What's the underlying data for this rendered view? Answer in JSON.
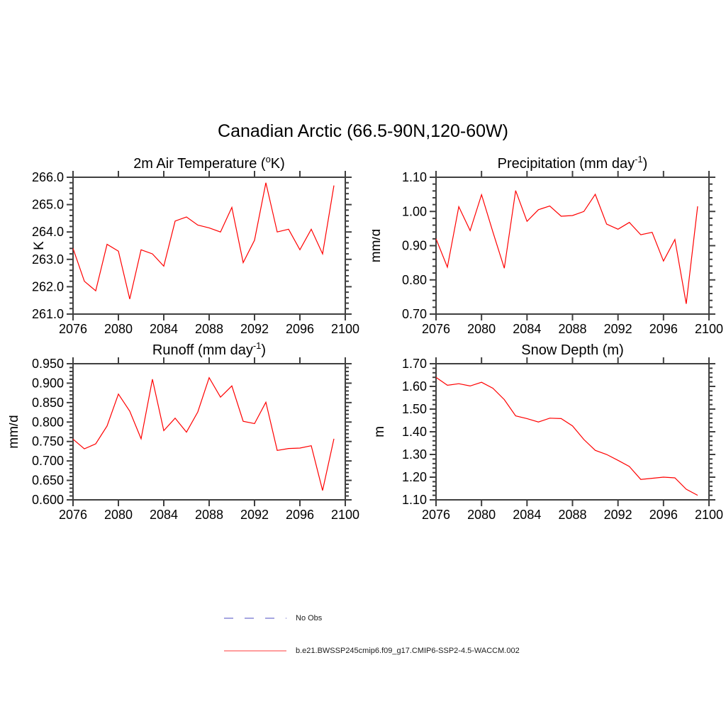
{
  "page_title": "Canadian Arctic (66.5-90N,120-60W)",
  "colors": {
    "series": "#ff0000",
    "axis": "#3f3f3f",
    "text": "#000000",
    "legend_no_obs": "#a6a6e1",
    "legend_series": "#ff9d9d"
  },
  "chart_data": [
    {
      "id": "temperature",
      "type": "line",
      "title": "2m Air Temperature (oK)",
      "title_parts": [
        {
          "t": "2m Air Temperature ("
        },
        {
          "t": "o",
          "sup": true
        },
        {
          "t": "K)"
        }
      ],
      "ylabel": "K",
      "xlim": [
        2076,
        2100
      ],
      "ylim": [
        261.0,
        266.0
      ],
      "xticks": [
        2076,
        2080,
        2084,
        2088,
        2092,
        2096,
        2100
      ],
      "ytick_labels": [
        "261.0",
        "262.0",
        "263.0",
        "264.0",
        "265.0",
        "266.0"
      ],
      "y_minor_step": 0.2,
      "x": [
        2076,
        2077,
        2078,
        2079,
        2080,
        2081,
        2082,
        2083,
        2084,
        2085,
        2086,
        2087,
        2088,
        2089,
        2090,
        2091,
        2092,
        2093,
        2094,
        2095,
        2096,
        2097,
        2098,
        2099
      ],
      "values": [
        263.4,
        262.2,
        261.85,
        263.55,
        263.3,
        261.55,
        263.35,
        263.2,
        262.75,
        264.4,
        264.55,
        264.25,
        264.15,
        264.0,
        264.9,
        262.88,
        263.7,
        265.8,
        264.0,
        264.1,
        263.35,
        264.1,
        263.2,
        265.7
      ]
    },
    {
      "id": "precipitation",
      "type": "line",
      "title": "Precipitation (mm day-1)",
      "title_parts": [
        {
          "t": "Precipitation (mm day"
        },
        {
          "t": "-1",
          "sup": true
        },
        {
          "t": ")"
        }
      ],
      "ylabel": "mm/d",
      "xlim": [
        2076,
        2100
      ],
      "ylim": [
        0.7,
        1.1
      ],
      "xticks": [
        2076,
        2080,
        2084,
        2088,
        2092,
        2096,
        2100
      ],
      "ytick_labels": [
        "0.70",
        "0.80",
        "0.90",
        "1.00",
        "1.10"
      ],
      "y_minor_step": 0.02,
      "x": [
        2076,
        2077,
        2078,
        2079,
        2080,
        2081,
        2082,
        2083,
        2084,
        2085,
        2086,
        2087,
        2088,
        2089,
        2090,
        2091,
        2092,
        2093,
        2094,
        2095,
        2096,
        2097,
        2098,
        2099
      ],
      "values": [
        0.92,
        0.837,
        1.014,
        0.944,
        1.049,
        0.94,
        0.834,
        1.061,
        0.971,
        1.005,
        1.016,
        0.986,
        0.988,
        1.0,
        1.05,
        0.963,
        0.948,
        0.968,
        0.932,
        0.939,
        0.855,
        0.918,
        0.73,
        1.015
      ]
    },
    {
      "id": "runoff",
      "type": "line",
      "title": "Runoff (mm day-1)",
      "title_parts": [
        {
          "t": "Runoff (mm day"
        },
        {
          "t": "-1",
          "sup": true
        },
        {
          "t": ")"
        }
      ],
      "ylabel": "mm/d",
      "xlim": [
        2076,
        2100
      ],
      "ylim": [
        0.6,
        0.95
      ],
      "xticks": [
        2076,
        2080,
        2084,
        2088,
        2092,
        2096,
        2100
      ],
      "ytick_labels": [
        "0.600",
        "0.650",
        "0.700",
        "0.750",
        "0.800",
        "0.850",
        "0.900",
        "0.950"
      ],
      "y_minor_step": 0.01,
      "x": [
        2076,
        2077,
        2078,
        2079,
        2080,
        2081,
        2082,
        2083,
        2084,
        2085,
        2086,
        2087,
        2088,
        2089,
        2090,
        2091,
        2092,
        2093,
        2094,
        2095,
        2096,
        2097,
        2098,
        2099
      ],
      "values": [
        0.756,
        0.731,
        0.744,
        0.79,
        0.872,
        0.828,
        0.757,
        0.91,
        0.778,
        0.81,
        0.774,
        0.826,
        0.914,
        0.864,
        0.893,
        0.802,
        0.796,
        0.851,
        0.727,
        0.732,
        0.733,
        0.739,
        0.624,
        0.757
      ]
    },
    {
      "id": "snow-depth",
      "type": "line",
      "title": "Snow Depth (m)",
      "title_parts": [
        {
          "t": "Snow Depth (m)"
        }
      ],
      "ylabel": "m",
      "xlim": [
        2076,
        2100
      ],
      "ylim": [
        1.1,
        1.7
      ],
      "xticks": [
        2076,
        2080,
        2084,
        2088,
        2092,
        2096,
        2100
      ],
      "ytick_labels": [
        "1.10",
        "1.20",
        "1.30",
        "1.40",
        "1.50",
        "1.60",
        "1.70"
      ],
      "y_minor_step": 0.02,
      "x": [
        2076,
        2077,
        2078,
        2079,
        2080,
        2081,
        2082,
        2083,
        2084,
        2085,
        2086,
        2087,
        2088,
        2089,
        2090,
        2091,
        2092,
        2093,
        2094,
        2095,
        2096,
        2097,
        2098,
        2099
      ],
      "values": [
        1.64,
        1.605,
        1.612,
        1.602,
        1.618,
        1.592,
        1.542,
        1.47,
        1.458,
        1.443,
        1.46,
        1.458,
        1.426,
        1.366,
        1.318,
        1.3,
        1.274,
        1.247,
        1.19,
        1.195,
        1.2,
        1.197,
        1.147,
        1.12
      ]
    }
  ],
  "legend": [
    {
      "label": "No Obs",
      "style": "dashed",
      "color": "#a6a6e1"
    },
    {
      "label": "b.e21.BWSSP245cmip6.f09_g17.CMIP6-SSP2-4.5-WACCM.002",
      "style": "solid",
      "color": "#ff9d9d"
    }
  ]
}
